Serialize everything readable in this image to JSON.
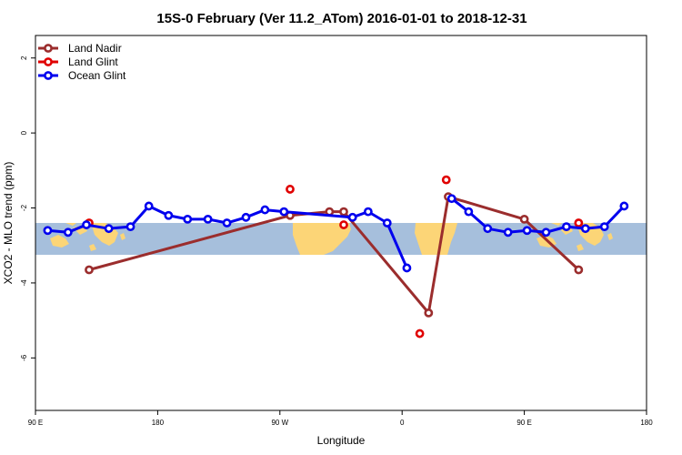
{
  "chart_data": {
    "type": "line",
    "title": "15S-0 February (Ver 11.2_ATom)   2016-01-01 to 2018-12-31",
    "xlabel": "Longitude",
    "ylabel": "XCO2 - MLO trend (ppm)",
    "xlim": [
      90,
      540
    ],
    "ylim": [
      -7.4,
      2.6
    ],
    "x_ticks": [
      {
        "value": 90,
        "label": "90 E"
      },
      {
        "value": 180,
        "label": "180"
      },
      {
        "value": 270,
        "label": "90 W"
      },
      {
        "value": 360,
        "label": "0"
      },
      {
        "value": 450,
        "label": "90 E"
      },
      {
        "value": 540,
        "label": "180"
      }
    ],
    "y_ticks": [
      {
        "value": 2,
        "label": "2"
      },
      {
        "value": 0,
        "label": "0"
      },
      {
        "value": -2,
        "label": "-2"
      },
      {
        "value": -4,
        "label": "-4"
      },
      {
        "value": -6,
        "label": "-6"
      }
    ],
    "map_band": {
      "lat_top": 0,
      "lat_bottom": -15,
      "y_top": -2.4,
      "y_bottom": -3.2
    },
    "legend": {
      "position": "top-left"
    },
    "series": [
      {
        "name": "Land Nadir",
        "color": "#9b2d2d",
        "connect": true,
        "points": [
          [
            129.5,
            -3.65
          ],
          [
            277.5,
            -2.2
          ],
          [
            306.5,
            -2.1
          ],
          [
            317,
            -2.1
          ],
          [
            379.5,
            -4.8
          ],
          [
            394,
            -1.7
          ],
          [
            450,
            -2.3
          ],
          [
            490,
            -3.65
          ]
        ]
      },
      {
        "name": "Land Glint",
        "color": "#e00000",
        "connect": false,
        "points": [
          [
            129.5,
            -2.4
          ],
          [
            277.5,
            -1.5
          ],
          [
            317,
            -2.45
          ],
          [
            373,
            -5.35
          ],
          [
            392.5,
            -1.25
          ],
          [
            490,
            -2.4
          ]
        ]
      },
      {
        "name": "Ocean Glint",
        "color": "#0000ee",
        "connect": true,
        "segments": [
          [
            [
              99,
              -2.6
            ],
            [
              114,
              -2.65
            ],
            [
              127.5,
              -2.45
            ],
            [
              144,
              -2.55
            ],
            [
              160,
              -2.5
            ],
            [
              173.5,
              -1.95
            ],
            [
              188,
              -2.2
            ],
            [
              202,
              -2.3
            ],
            [
              217,
              -2.3
            ],
            [
              231,
              -2.4
            ],
            [
              245,
              -2.25
            ],
            [
              259,
              -2.05
            ],
            [
              273,
              -2.1
            ],
            [
              323.5,
              -2.25
            ],
            [
              335,
              -2.1
            ],
            [
              349,
              -2.4
            ],
            [
              363.5,
              -3.6
            ]
          ],
          [
            [
              396.5,
              -1.75
            ],
            [
              409,
              -2.1
            ],
            [
              423,
              -2.55
            ],
            [
              438,
              -2.65
            ],
            [
              452,
              -2.6
            ],
            [
              466,
              -2.65
            ],
            [
              481,
              -2.5
            ],
            [
              495,
              -2.55
            ],
            [
              509,
              -2.5
            ],
            [
              523.5,
              -1.95
            ]
          ]
        ]
      }
    ]
  }
}
